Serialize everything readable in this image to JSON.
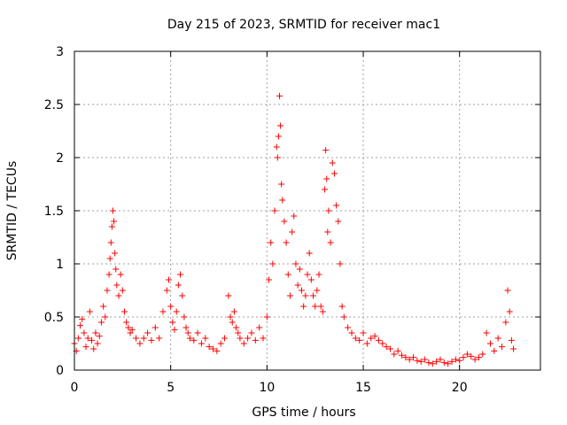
{
  "chart_data": {
    "type": "scatter",
    "title": "Day 215 of 2023, SRMTID for receiver mac1",
    "xlabel": "GPS time / hours",
    "ylabel": "SRMTID / TECUs",
    "xlim": [
      0,
      24.2
    ],
    "ylim": [
      0,
      3
    ],
    "x_ticks": [
      0,
      5,
      10,
      15,
      20
    ],
    "x_tick_labels": [
      "0",
      "5",
      "10",
      "15",
      "20"
    ],
    "y_ticks": [
      0,
      0.5,
      1,
      1.5,
      2,
      2.5,
      3
    ],
    "y_tick_labels": [
      "0",
      "0.5",
      "1",
      "1.5",
      "2",
      "2.5",
      "3"
    ],
    "grid": true,
    "marker": "+",
    "color": "#ff0000",
    "series": [
      {
        "name": "SRMTID",
        "x": [
          0.0,
          0.1,
          0.2,
          0.3,
          0.4,
          0.5,
          0.6,
          0.7,
          0.8,
          0.9,
          1.0,
          1.1,
          1.2,
          1.3,
          1.4,
          1.5,
          1.6,
          1.7,
          1.8,
          1.85,
          1.9,
          1.95,
          2.0,
          2.05,
          2.1,
          2.15,
          2.2,
          2.3,
          2.4,
          2.5,
          2.6,
          2.7,
          2.8,
          2.9,
          3.0,
          3.2,
          3.4,
          3.6,
          3.8,
          4.0,
          4.2,
          4.4,
          4.6,
          4.8,
          4.9,
          5.0,
          5.1,
          5.2,
          5.3,
          5.4,
          5.5,
          5.6,
          5.7,
          5.8,
          5.9,
          6.0,
          6.2,
          6.4,
          6.6,
          6.8,
          7.0,
          7.2,
          7.4,
          7.6,
          7.8,
          8.0,
          8.1,
          8.2,
          8.3,
          8.4,
          8.5,
          8.6,
          8.8,
          9.0,
          9.2,
          9.4,
          9.6,
          9.8,
          10.0,
          10.1,
          10.2,
          10.3,
          10.4,
          10.5,
          10.55,
          10.6,
          10.65,
          10.7,
          10.75,
          10.8,
          10.9,
          11.0,
          11.1,
          11.2,
          11.3,
          11.4,
          11.5,
          11.6,
          11.7,
          11.8,
          11.9,
          12.0,
          12.1,
          12.2,
          12.3,
          12.4,
          12.5,
          12.6,
          12.7,
          12.8,
          12.9,
          13.0,
          13.05,
          13.1,
          13.15,
          13.2,
          13.3,
          13.4,
          13.5,
          13.6,
          13.7,
          13.8,
          13.9,
          14.0,
          14.2,
          14.4,
          14.6,
          14.8,
          15.0,
          15.2,
          15.4,
          15.6,
          15.8,
          16.0,
          16.2,
          16.4,
          16.6,
          16.8,
          17.0,
          17.2,
          17.4,
          17.6,
          17.8,
          18.0,
          18.2,
          18.4,
          18.6,
          18.8,
          19.0,
          19.2,
          19.4,
          19.6,
          19.8,
          20.0,
          20.2,
          20.4,
          20.6,
          20.8,
          21.0,
          21.2,
          21.4,
          21.6,
          21.8,
          22.0,
          22.2,
          22.4,
          22.5,
          22.6,
          22.7,
          22.8
        ],
        "values": [
          0.25,
          0.18,
          0.3,
          0.42,
          0.48,
          0.35,
          0.22,
          0.3,
          0.55,
          0.28,
          0.2,
          0.35,
          0.25,
          0.32,
          0.45,
          0.6,
          0.5,
          0.75,
          0.9,
          1.05,
          1.2,
          1.35,
          1.5,
          1.4,
          1.1,
          0.95,
          0.8,
          0.7,
          0.9,
          0.75,
          0.55,
          0.45,
          0.4,
          0.35,
          0.38,
          0.3,
          0.25,
          0.3,
          0.35,
          0.28,
          0.4,
          0.3,
          0.55,
          0.75,
          0.85,
          0.6,
          0.45,
          0.38,
          0.55,
          0.8,
          0.9,
          0.7,
          0.5,
          0.4,
          0.35,
          0.3,
          0.28,
          0.35,
          0.25,
          0.3,
          0.22,
          0.2,
          0.18,
          0.25,
          0.3,
          0.7,
          0.5,
          0.45,
          0.55,
          0.4,
          0.35,
          0.3,
          0.25,
          0.3,
          0.35,
          0.28,
          0.4,
          0.3,
          0.5,
          0.85,
          1.2,
          1.0,
          1.5,
          2.1,
          2.0,
          2.2,
          2.58,
          2.3,
          1.75,
          1.6,
          1.4,
          1.2,
          0.9,
          0.7,
          1.3,
          1.45,
          1.0,
          0.8,
          0.95,
          0.75,
          0.6,
          0.7,
          0.9,
          1.1,
          0.85,
          0.7,
          0.6,
          0.75,
          0.9,
          0.6,
          0.55,
          1.7,
          2.07,
          1.8,
          1.3,
          1.5,
          1.2,
          1.95,
          1.85,
          1.55,
          1.4,
          1.0,
          0.6,
          0.5,
          0.4,
          0.35,
          0.3,
          0.28,
          0.35,
          0.25,
          0.3,
          0.32,
          0.28,
          0.25,
          0.22,
          0.2,
          0.15,
          0.18,
          0.14,
          0.12,
          0.1,
          0.12,
          0.09,
          0.08,
          0.1,
          0.07,
          0.06,
          0.08,
          0.1,
          0.07,
          0.06,
          0.08,
          0.1,
          0.09,
          0.12,
          0.15,
          0.13,
          0.1,
          0.12,
          0.15,
          0.35,
          0.25,
          0.18,
          0.3,
          0.22,
          0.45,
          0.75,
          0.55,
          0.28,
          0.2
        ]
      }
    ]
  }
}
